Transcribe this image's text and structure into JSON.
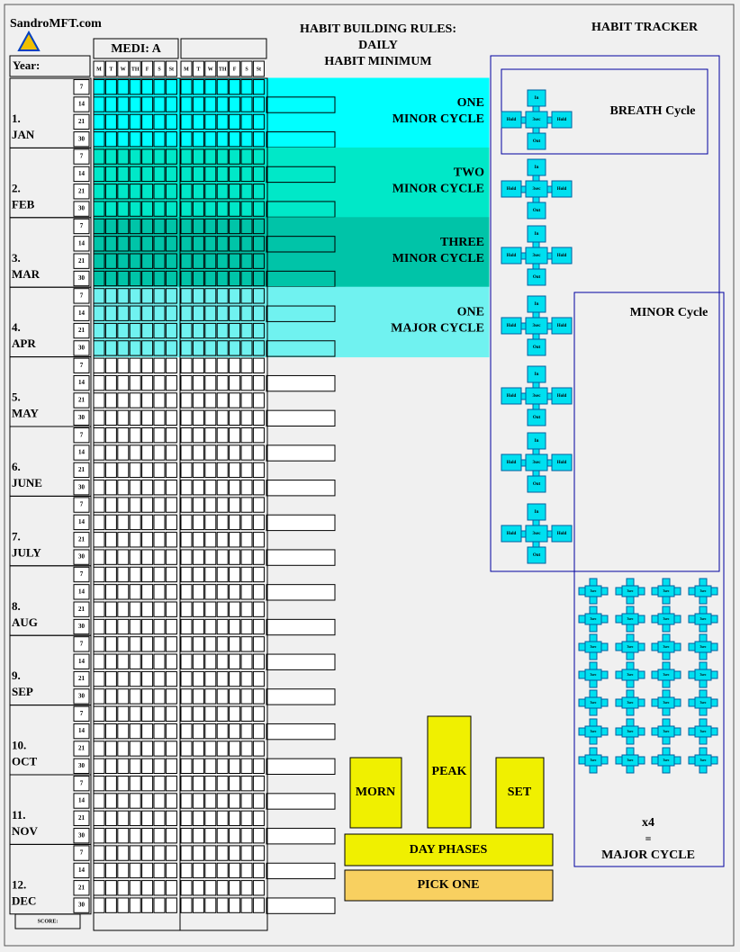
{
  "header": {
    "site": "SandroMFT.com",
    "rules": [
      "HABIT BUILDING RULES:",
      "DAILY",
      "HABIT MINIMUM"
    ],
    "tracker": "HABIT TRACKER"
  },
  "tracker": {
    "medi": "MEDI: A",
    "year": "Year:",
    "days": [
      "M",
      "T",
      "W",
      "TH",
      "F",
      "S",
      "St"
    ],
    "weeks": [
      7,
      14,
      21,
      30
    ],
    "months": [
      {
        "num": "1.",
        "name": "JAN"
      },
      {
        "num": "2.",
        "name": "FEB"
      },
      {
        "num": "3.",
        "name": "MAR"
      },
      {
        "num": "4.",
        "name": "APR"
      },
      {
        "num": "5.",
        "name": "MAY"
      },
      {
        "num": "6.",
        "name": "JUNE"
      },
      {
        "num": "7.",
        "name": "JULY"
      },
      {
        "num": "8.",
        "name": "AUG"
      },
      {
        "num": "9.",
        "name": "SEP"
      },
      {
        "num": "10.",
        "name": "OCT"
      },
      {
        "num": "11.",
        "name": "NOV"
      },
      {
        "num": "12.",
        "name": "DEC"
      }
    ],
    "score": "SCORE:"
  },
  "cycles": [
    {
      "count": "ONE",
      "label": "MINOR CYCLE",
      "color": "#00ffff"
    },
    {
      "count": "TWO",
      "label": "MINOR CYCLE",
      "color": "#00e8c8"
    },
    {
      "count": "THREE",
      "label": "MINOR CYCLE",
      "color": "#00c4a8"
    },
    {
      "count": "ONE",
      "label": "MAJOR CYCLE",
      "color": "#70f2f0"
    }
  ],
  "breath": {
    "title": "BREATH Cycle",
    "in": "In",
    "hold": "Hold",
    "hold_time": "3sec",
    "out": "Out"
  },
  "minor": {
    "title": "MINOR Cycle",
    "multiplier": "x4",
    "equals": "=",
    "result": "MAJOR CYCLE"
  },
  "phases": {
    "morn": "MORN",
    "peak": "PEAK",
    "set": "SET",
    "title": "DAY PHASES",
    "pick": "PICK ONE"
  }
}
